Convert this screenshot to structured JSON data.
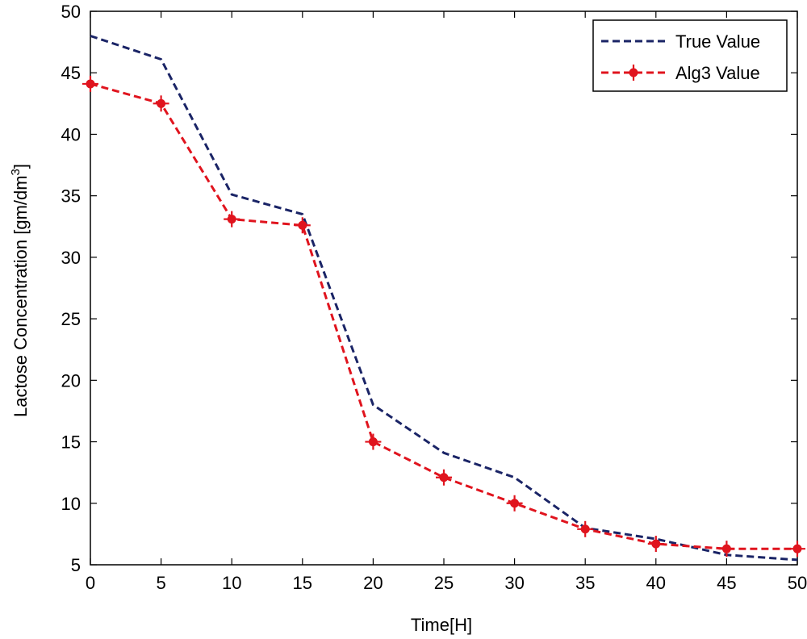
{
  "chart_data": {
    "type": "line",
    "title": "",
    "xlabel": "Time[H]",
    "ylabel": "Lactose Concentration [gm/dm",
    "ylabel_superscript": "3",
    "ylabel_suffix": "]",
    "xlim": [
      0,
      50
    ],
    "ylim": [
      5,
      50
    ],
    "xticks": [
      0,
      5,
      10,
      15,
      20,
      25,
      30,
      35,
      40,
      45,
      50
    ],
    "yticks": [
      5,
      10,
      15,
      20,
      25,
      30,
      35,
      40,
      45,
      50
    ],
    "grid": false,
    "legend_position": "top-right",
    "x": [
      0,
      5,
      10,
      15,
      20,
      25,
      30,
      35,
      40,
      45,
      50
    ],
    "series": [
      {
        "name": "True Value",
        "color": "#1a2466",
        "line_style": "dashed",
        "marker": "none",
        "values": [
          48.0,
          46.1,
          35.1,
          33.5,
          18.0,
          14.1,
          12.1,
          8.0,
          7.1,
          5.8,
          5.4
        ]
      },
      {
        "name": "Alg3 Value",
        "color": "#e0141e",
        "line_style": "dashed",
        "marker": "cross",
        "values": [
          44.1,
          42.5,
          33.1,
          32.6,
          15.0,
          12.1,
          10.0,
          7.9,
          6.7,
          6.3,
          6.3
        ]
      }
    ]
  }
}
